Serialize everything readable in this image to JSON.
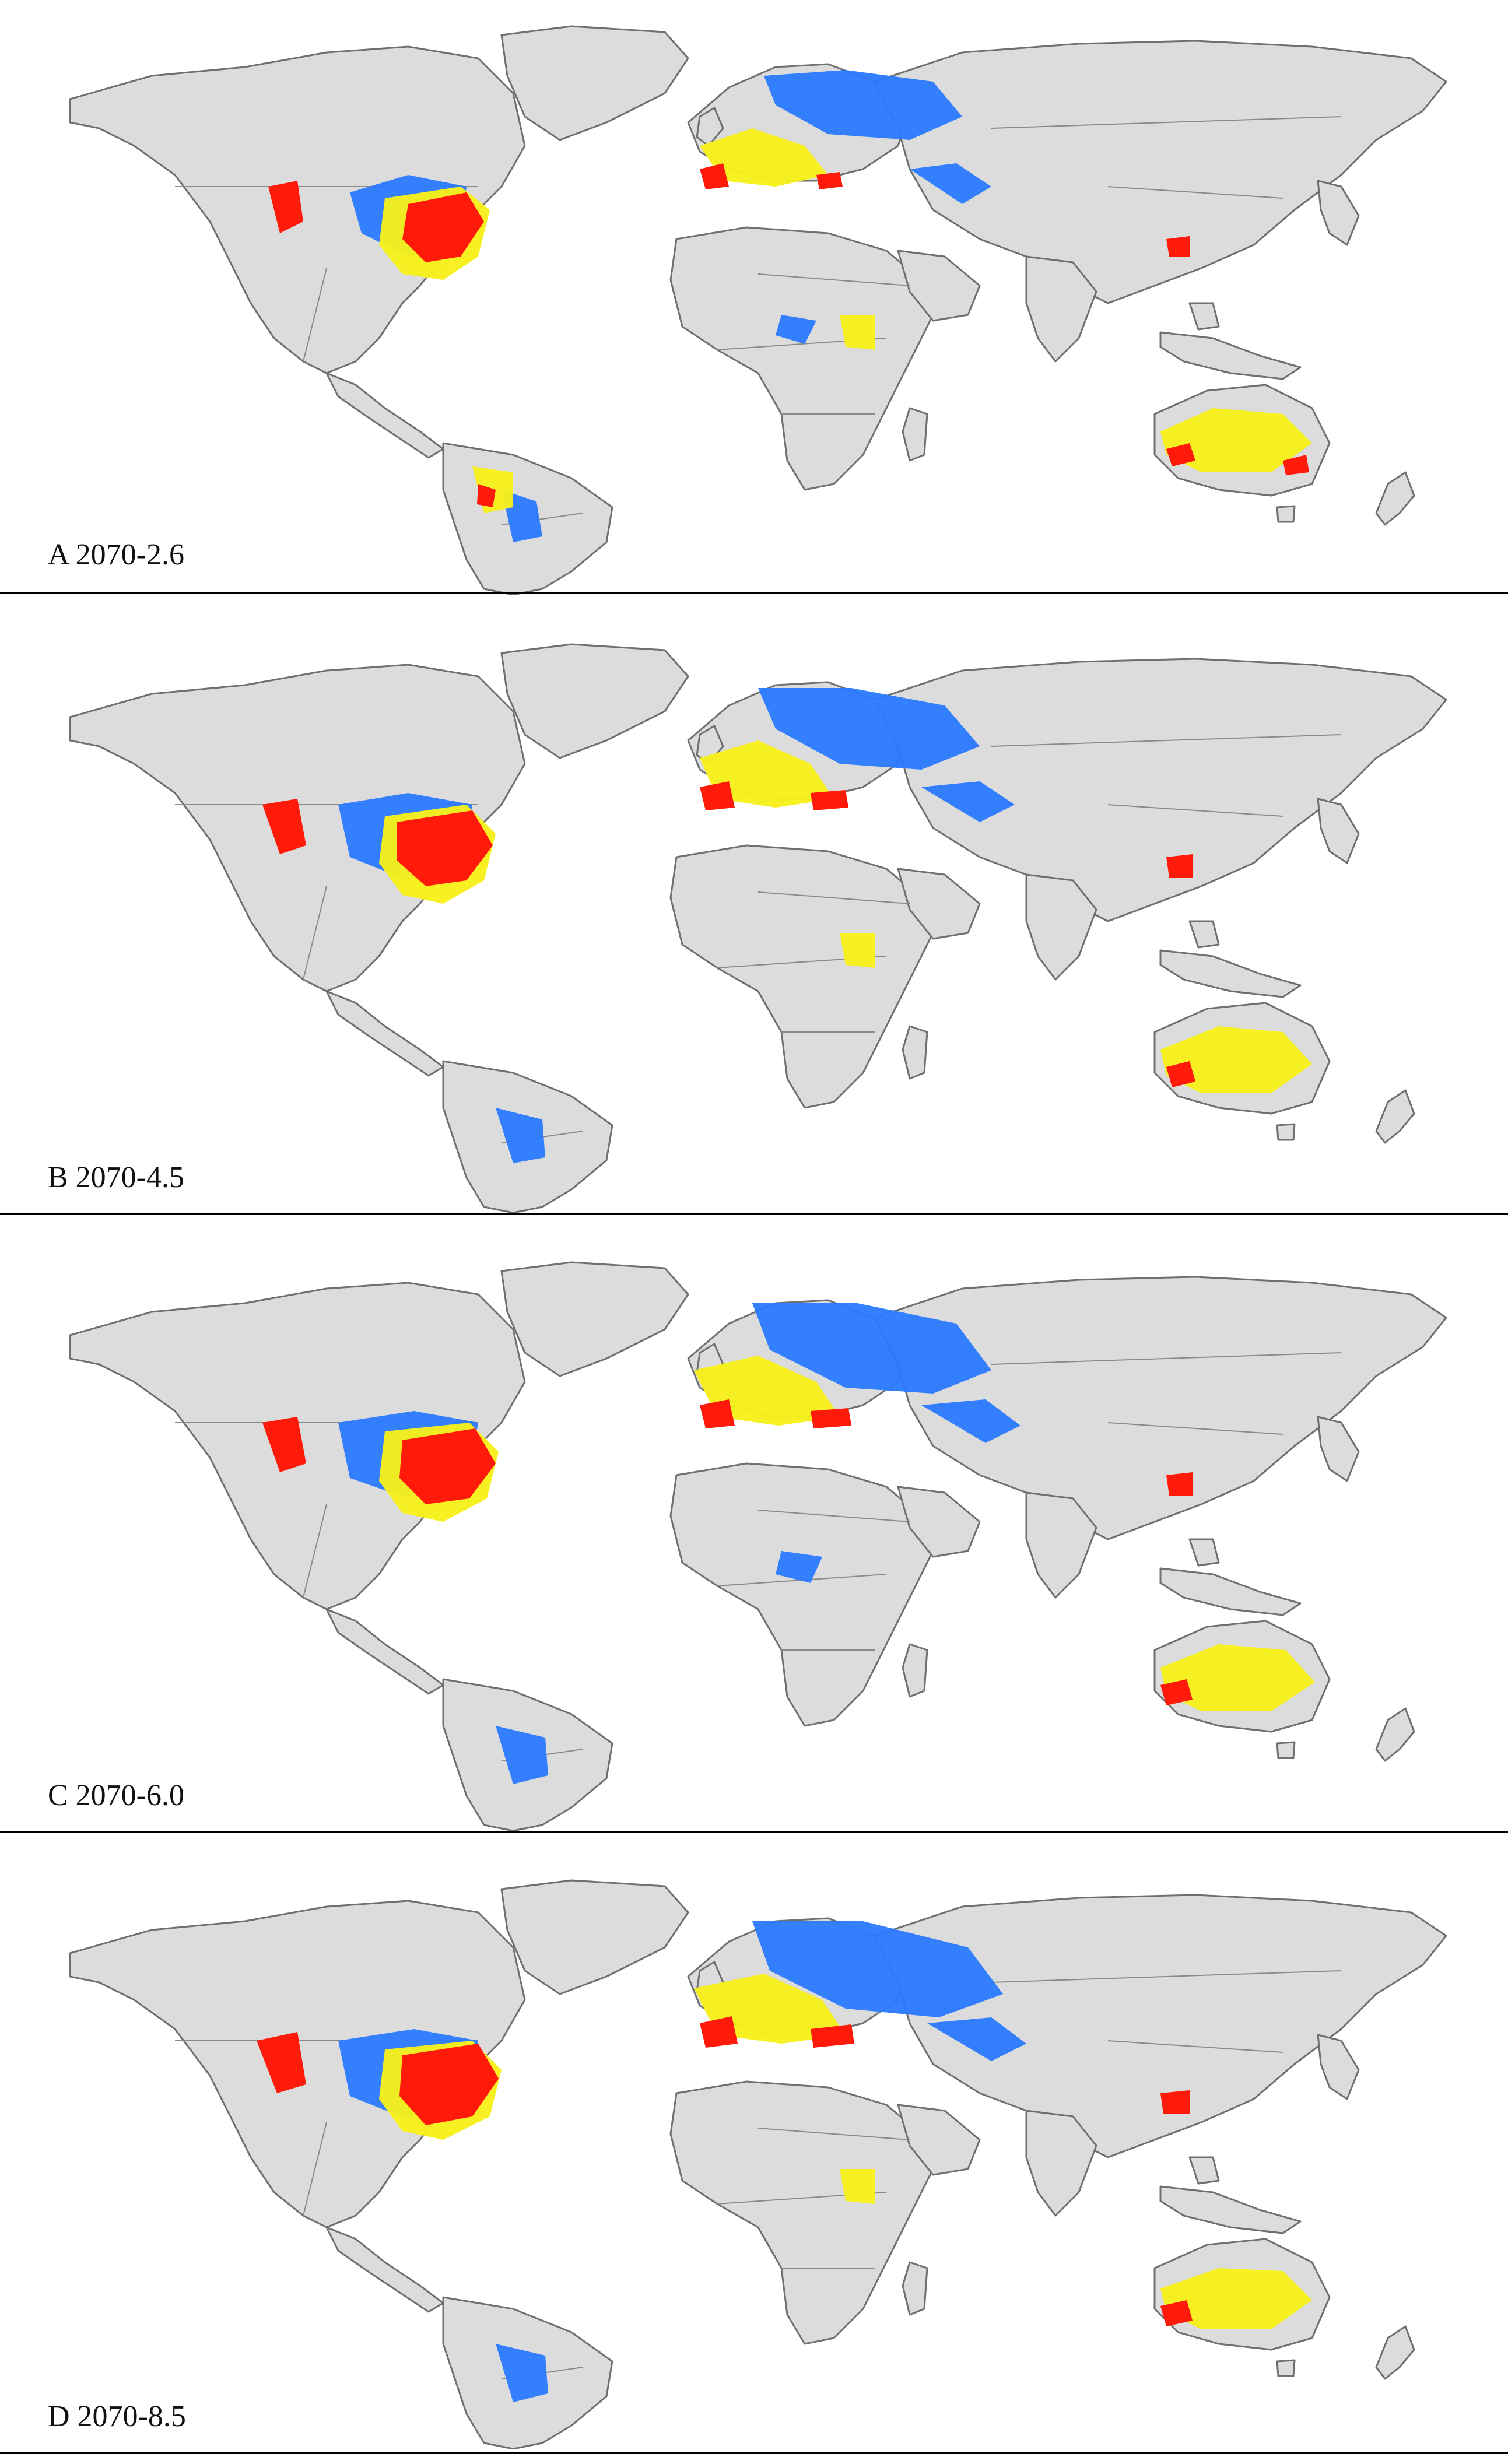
{
  "colors": {
    "land": "#dcdcdc",
    "border": "#7a7a7a",
    "low": "#2979ff",
    "medium": "#f7f01c",
    "high": "#ff1a0a"
  },
  "panels": [
    {
      "label": "A 2070-2.6"
    },
    {
      "label": "B 2070-4.5"
    },
    {
      "label": "C 2070-6.0"
    },
    {
      "label": "D 2070-8.5"
    }
  ]
}
